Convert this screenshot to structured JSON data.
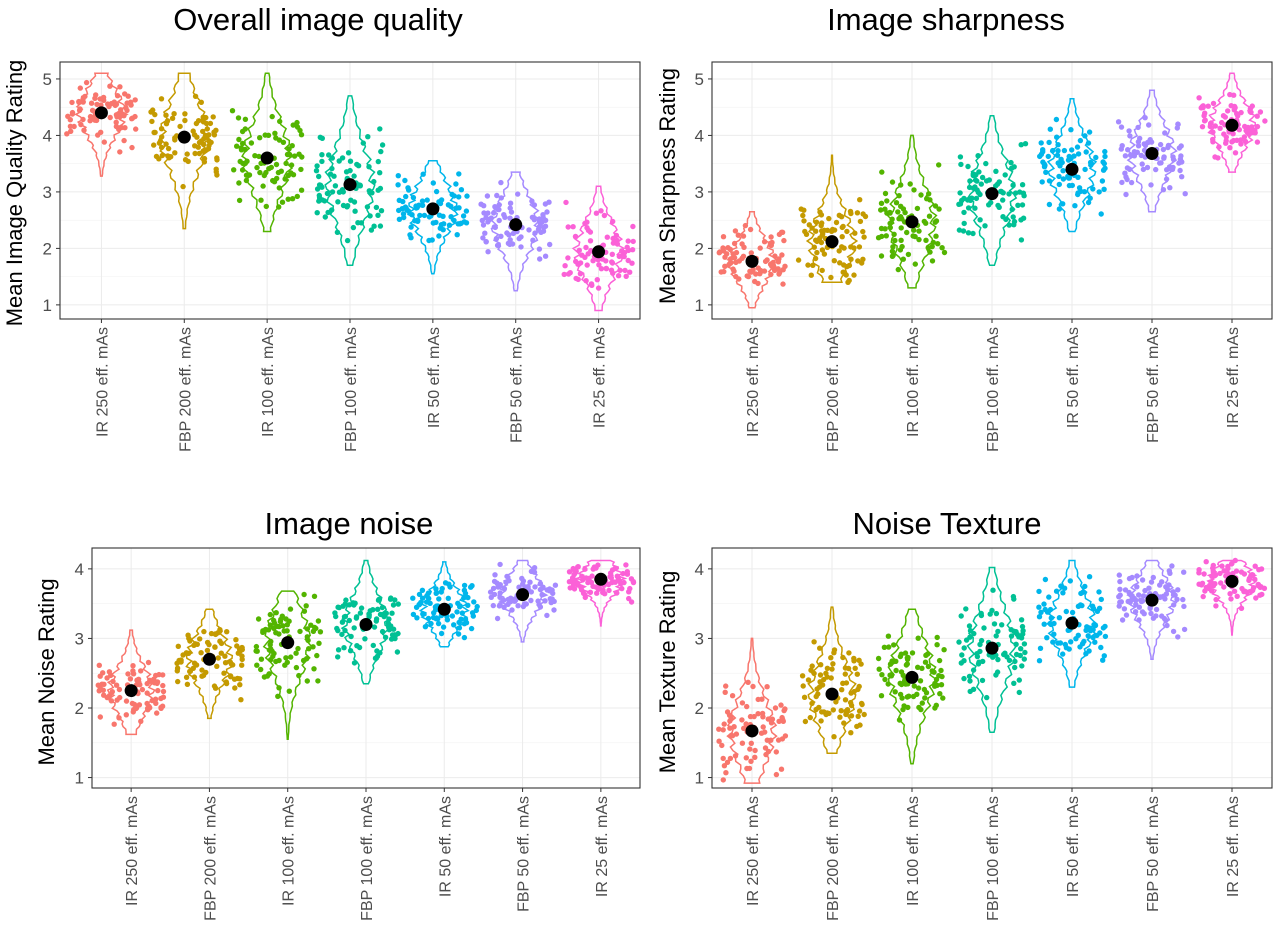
{
  "chart_data": [
    {
      "type": "violin-jitter",
      "title": "Overall image quality",
      "xlabel": "",
      "ylabel": "Mean Image Quality Rating",
      "ylim": [
        0.75,
        5.3
      ],
      "yticks": [
        1,
        2,
        3,
        4,
        5
      ],
      "grid": true,
      "legend": "none",
      "categories": [
        "IR 250 eff. mAs",
        "FBP 200 eff. mAs",
        "IR 100 eff. mAs",
        "FBP 100 eff. mAs",
        "IR 50 eff. mAs",
        "FBP 50 eff. mAs",
        "IR 25 eff. mAs"
      ],
      "colors": [
        "#F8766D",
        "#C49A00",
        "#53B400",
        "#00C094",
        "#00B6EB",
        "#A58AFF",
        "#FB61D7"
      ],
      "means": [
        4.4,
        3.97,
        3.6,
        3.13,
        2.7,
        2.42,
        1.94
      ],
      "ranges": [
        [
          3.28,
          5.1
        ],
        [
          2.35,
          5.1
        ],
        [
          2.3,
          5.1
        ],
        [
          1.7,
          4.7
        ],
        [
          1.55,
          3.55
        ],
        [
          1.25,
          3.35
        ],
        [
          0.9,
          3.1
        ]
      ]
    },
    {
      "type": "violin-jitter",
      "title": "Image sharpness",
      "xlabel": "",
      "ylabel": "Mean Sharpness Rating",
      "ylim": [
        0.75,
        5.3
      ],
      "yticks": [
        1,
        2,
        3,
        4,
        5
      ],
      "grid": true,
      "legend": "none",
      "categories": [
        "IR 250 eff. mAs",
        "FBP 200 eff. mAs",
        "IR 100 eff. mAs",
        "FBP 100 eff. mAs",
        "IR 50 eff. mAs",
        "FBP 50 eff. mAs",
        "IR 25 eff. mAs"
      ],
      "colors": [
        "#F8766D",
        "#C49A00",
        "#53B400",
        "#00C094",
        "#00B6EB",
        "#A58AFF",
        "#FB61D7"
      ],
      "means": [
        1.77,
        2.12,
        2.47,
        2.97,
        3.4,
        3.68,
        4.18
      ],
      "ranges": [
        [
          0.95,
          2.65
        ],
        [
          1.4,
          3.65
        ],
        [
          1.3,
          4.0
        ],
        [
          1.7,
          4.35
        ],
        [
          2.3,
          4.65
        ],
        [
          2.65,
          4.8
        ],
        [
          3.35,
          5.1
        ]
      ]
    },
    {
      "type": "violin-jitter",
      "title": "Image noise",
      "xlabel": "",
      "ylabel": "Mean Noise Rating",
      "ylim": [
        0.85,
        4.3
      ],
      "yticks": [
        1,
        2,
        3,
        4
      ],
      "grid": true,
      "legend": "none",
      "categories": [
        "IR 250 eff. mAs",
        "FBP 200 eff. mAs",
        "IR 100 eff. mAs",
        "FBP 100 eff. mAs",
        "IR 50 eff. mAs",
        "FBP 50 eff. mAs",
        "IR 25 eff. mAs"
      ],
      "colors": [
        "#F8766D",
        "#C49A00",
        "#53B400",
        "#00C094",
        "#00B6EB",
        "#A58AFF",
        "#FB61D7"
      ],
      "means": [
        2.25,
        2.7,
        2.94,
        3.2,
        3.42,
        3.63,
        3.85
      ],
      "ranges": [
        [
          1.62,
          3.12
        ],
        [
          1.85,
          3.42
        ],
        [
          1.55,
          3.68
        ],
        [
          2.35,
          4.12
        ],
        [
          2.88,
          4.1
        ],
        [
          2.95,
          4.12
        ],
        [
          3.18,
          4.12
        ]
      ]
    },
    {
      "type": "violin-jitter",
      "title": "Noise Texture",
      "xlabel": "",
      "ylabel": "Mean Texture Rating",
      "ylim": [
        0.85,
        4.3
      ],
      "yticks": [
        1,
        2,
        3,
        4
      ],
      "grid": true,
      "legend": "none",
      "categories": [
        "IR 250 eff. mAs",
        "FBP 200 eff. mAs",
        "IR 100 eff. mAs",
        "FBP 100 eff. mAs",
        "IR 50 eff. mAs",
        "FBP 50 eff. mAs",
        "IR 25 eff. mAs"
      ],
      "colors": [
        "#F8766D",
        "#C49A00",
        "#53B400",
        "#00C094",
        "#00B6EB",
        "#A58AFF",
        "#FB61D7"
      ],
      "means": [
        1.67,
        2.2,
        2.44,
        2.86,
        3.22,
        3.55,
        3.82
      ],
      "ranges": [
        [
          0.92,
          3.0
        ],
        [
          1.35,
          3.45
        ],
        [
          1.2,
          3.42
        ],
        [
          1.65,
          4.02
        ],
        [
          2.3,
          4.12
        ],
        [
          2.7,
          4.12
        ],
        [
          3.05,
          4.12
        ]
      ]
    }
  ]
}
